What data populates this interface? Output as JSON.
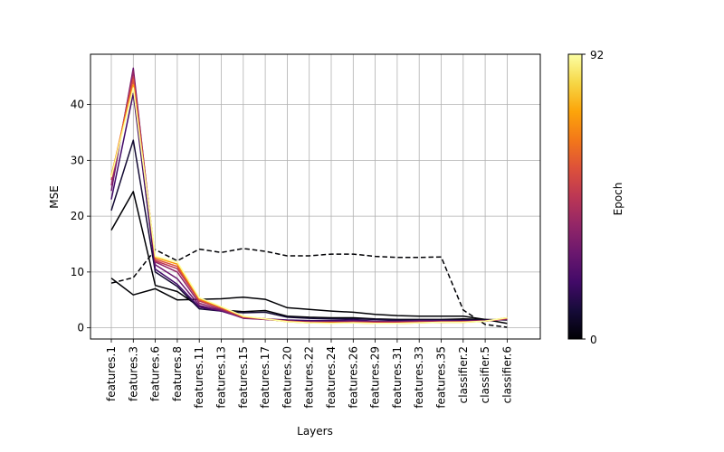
{
  "chart_data": {
    "type": "line",
    "title": "",
    "xlabel": "Layers",
    "ylabel": "MSE",
    "ylim": [
      -2,
      49
    ],
    "yticks": [
      0,
      10,
      20,
      30,
      40
    ],
    "grid": true,
    "categories": [
      "features.1",
      "features.3",
      "features.6",
      "features.8",
      "features.11",
      "features.13",
      "features.15",
      "features.17",
      "features.20",
      "features.22",
      "features.24",
      "features.26",
      "features.29",
      "features.31",
      "features.33",
      "features.35",
      "classifier.2",
      "classifier.5",
      "classifier.6"
    ],
    "colorbar": {
      "label": "Epoch",
      "min": 0,
      "max": 92,
      "ticks": [
        "0",
        "92"
      ],
      "colormap": "inferno"
    },
    "series": [
      {
        "epoch": 0,
        "color": "#000004",
        "style": "dashed",
        "values": [
          8.0,
          9.0,
          14.0,
          12.0,
          14.1,
          13.5,
          14.2,
          13.7,
          12.9,
          12.9,
          13.2,
          13.2,
          12.8,
          12.6,
          12.6,
          12.7,
          3.2,
          0.6,
          0.1
        ]
      },
      {
        "epoch": 1,
        "color": "#000004",
        "style": "solid",
        "values": [
          8.9,
          5.9,
          7.0,
          5.0,
          5.1,
          5.2,
          5.5,
          5.1,
          3.6,
          3.3,
          3.0,
          2.8,
          2.4,
          2.2,
          2.1,
          2.1,
          2.1,
          1.5,
          0.8
        ]
      },
      {
        "epoch": 3,
        "color": "#000004",
        "style": "solid",
        "values": [
          17.5,
          24.4,
          7.6,
          6.5,
          3.8,
          3.2,
          2.9,
          3.1,
          2.1,
          1.9,
          1.8,
          1.8,
          1.6,
          1.5,
          1.5,
          1.5,
          1.6,
          1.5,
          1.4
        ]
      },
      {
        "epoch": 8,
        "color": "#140b34",
        "style": "solid",
        "values": [
          21.0,
          33.6,
          10.0,
          7.4,
          3.4,
          3.0,
          2.7,
          2.8,
          1.9,
          1.7,
          1.6,
          1.6,
          1.5,
          1.4,
          1.4,
          1.4,
          1.4,
          1.4,
          1.5
        ]
      },
      {
        "epoch": 20,
        "color": "#420a68",
        "style": "solid",
        "values": [
          23.0,
          42.0,
          10.5,
          7.8,
          3.7,
          3.0,
          1.8,
          1.6,
          1.4,
          1.3,
          1.3,
          1.4,
          1.2,
          1.2,
          1.3,
          1.3,
          1.3,
          1.3,
          1.5
        ]
      },
      {
        "epoch": 35,
        "color": "#6a176e",
        "style": "solid",
        "values": [
          24.5,
          46.5,
          11.3,
          8.8,
          4.0,
          3.1,
          1.7,
          1.5,
          1.2,
          1.1,
          1.1,
          1.2,
          1.1,
          1.1,
          1.2,
          1.2,
          1.2,
          1.3,
          1.6
        ]
      },
      {
        "epoch": 50,
        "color": "#932667",
        "style": "solid",
        "values": [
          25.5,
          46.0,
          11.8,
          10.0,
          4.4,
          3.3,
          1.8,
          1.5,
          1.2,
          1.0,
          1.0,
          1.1,
          1.0,
          1.0,
          1.1,
          1.1,
          1.1,
          1.2,
          1.6
        ]
      },
      {
        "epoch": 62,
        "color": "#bc3754",
        "style": "solid",
        "values": [
          26.5,
          45.0,
          12.0,
          10.6,
          4.8,
          3.5,
          1.9,
          1.6,
          1.2,
          1.0,
          1.0,
          1.0,
          1.0,
          1.0,
          1.0,
          1.1,
          1.1,
          1.2,
          1.7
        ]
      },
      {
        "epoch": 72,
        "color": "#dd513a",
        "style": "solid",
        "values": [
          27.0,
          44.5,
          12.3,
          11.0,
          5.0,
          3.6,
          2.0,
          1.6,
          1.2,
          1.0,
          0.9,
          1.0,
          0.9,
          0.9,
          1.0,
          1.0,
          1.1,
          1.2,
          1.7
        ]
      },
      {
        "epoch": 82,
        "color": "#fb9b06",
        "style": "solid",
        "values": [
          27.3,
          43.5,
          12.6,
          11.4,
          5.2,
          3.7,
          2.0,
          1.6,
          1.1,
          0.9,
          0.9,
          0.9,
          0.8,
          0.8,
          0.9,
          1.0,
          1.0,
          1.2,
          1.8
        ]
      },
      {
        "epoch": 92,
        "color": "#fcffa4",
        "style": "solid",
        "values": [
          27.0,
          43.0,
          12.8,
          11.8,
          5.4,
          3.8,
          2.1,
          1.6,
          1.1,
          0.9,
          0.8,
          0.9,
          0.8,
          0.8,
          0.9,
          1.0,
          1.0,
          1.2,
          1.8
        ]
      }
    ]
  }
}
